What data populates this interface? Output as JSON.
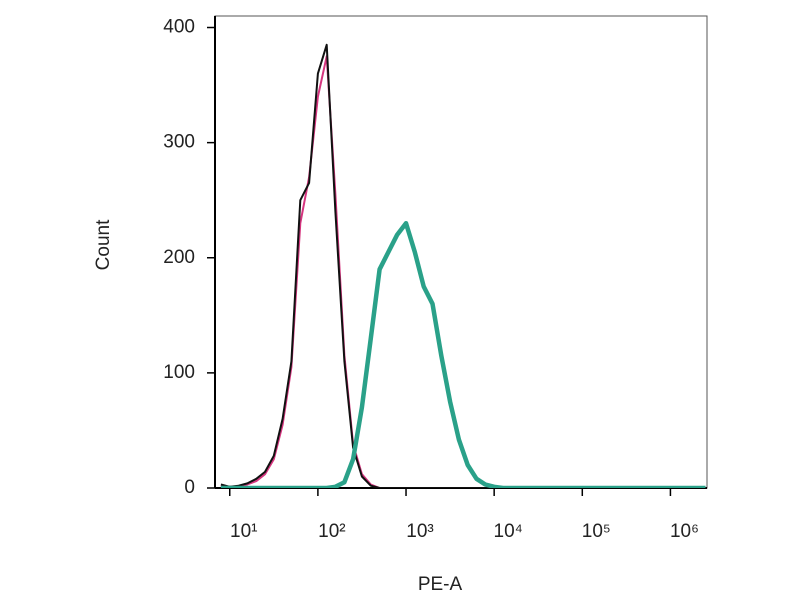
{
  "chart_data": {
    "type": "line",
    "x_label": "PE-A",
    "y_label": "Count",
    "x_scale": "log",
    "x": [
      7.94,
      10,
      12.6,
      15.8,
      20,
      25.1,
      31.6,
      39.8,
      50.1,
      63.1,
      79.4,
      100,
      126,
      158,
      200,
      251,
      316,
      398,
      501,
      631,
      794,
      1000,
      1259,
      1585,
      1995,
      2512,
      3162,
      3981,
      5012,
      6310,
      7943,
      10000,
      12589,
      15849,
      100000,
      1000000,
      2500000
    ],
    "series": [
      {
        "name": "Magenta",
        "color": "#d6357f",
        "width": 2,
        "values": [
          2,
          1,
          1,
          3,
          6,
          12,
          25,
          55,
          105,
          230,
          270,
          340,
          375,
          255,
          115,
          38,
          12,
          3,
          0,
          0,
          0,
          0,
          0,
          0,
          0,
          0,
          0,
          0,
          0,
          0,
          0,
          0,
          0,
          0,
          0,
          0,
          0
        ]
      },
      {
        "name": "Black",
        "color": "#111111",
        "width": 2,
        "values": [
          3,
          1,
          2,
          4,
          8,
          14,
          28,
          60,
          110,
          250,
          265,
          360,
          385,
          240,
          110,
          35,
          10,
          2,
          0,
          0,
          0,
          0,
          0,
          0,
          0,
          0,
          0,
          0,
          0,
          0,
          0,
          0,
          0,
          0,
          0,
          0,
          0
        ]
      },
      {
        "name": "Teal",
        "color": "#2aa189",
        "width": 4.5,
        "values": [
          0,
          0,
          0,
          0,
          0,
          0,
          0,
          0,
          0,
          0,
          0,
          0,
          0,
          1,
          5,
          25,
          70,
          130,
          190,
          205,
          220,
          230,
          205,
          175,
          160,
          115,
          75,
          42,
          20,
          8,
          3,
          1,
          0,
          0,
          0,
          0,
          0
        ]
      }
    ],
    "xlim": [
      6.8,
      2600000
    ],
    "xticks": [
      {
        "value": 10,
        "label": "10¹"
      },
      {
        "value": 100,
        "label": "10²"
      },
      {
        "value": 1000,
        "label": "10³"
      },
      {
        "value": 10000,
        "label": "10⁴"
      },
      {
        "value": 100000,
        "label": "10⁵"
      },
      {
        "value": 1000000,
        "label": "10⁶"
      }
    ],
    "ylim": [
      0,
      410
    ],
    "yticks": [
      0,
      100,
      200,
      300,
      400
    ]
  }
}
